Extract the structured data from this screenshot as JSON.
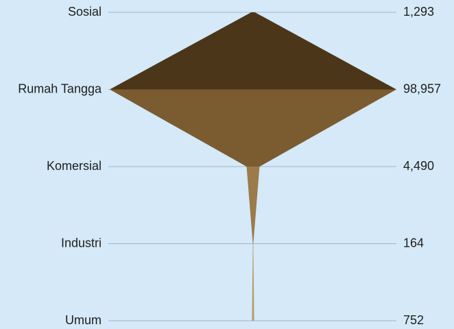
{
  "chart_data": {
    "type": "funnel",
    "categories": [
      "Sosial",
      "Rumah Tangga",
      "Komersial",
      "Industri",
      "Umum"
    ],
    "values": [
      1293,
      98957,
      4490,
      164,
      752
    ],
    "value_labels": [
      "1,293",
      "98,957",
      "4,490",
      "164",
      "752"
    ],
    "segment_colors": [
      "#4b3619",
      "#7a5c30",
      "#9b7b4a",
      "#b39b6b"
    ],
    "grid": true
  }
}
